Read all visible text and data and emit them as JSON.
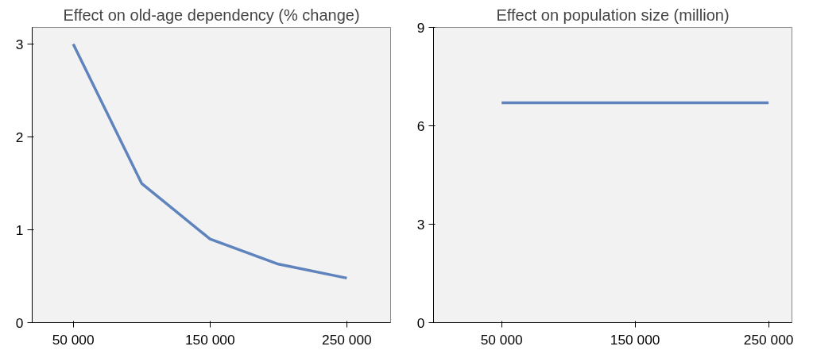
{
  "chart_data": [
    {
      "type": "line",
      "title": "Effect on old‑age dependency (% change)",
      "x": [
        50000,
        100000,
        150000,
        200000,
        250000
      ],
      "series": [
        {
          "color": "#5f84bd",
          "values": [
            3.0,
            1.5,
            0.9,
            0.63,
            0.48
          ]
        }
      ],
      "xlim": [
        20000,
        282000
      ],
      "ylim": [
        0,
        3.18
      ],
      "xticks": [
        {
          "value": 50000,
          "label": "50 000"
        },
        {
          "value": 150000,
          "label": "150 000"
        },
        {
          "value": 250000,
          "label": "250 000"
        }
      ],
      "yticks": [
        0,
        1,
        2,
        3
      ],
      "grid": false,
      "marker": "none",
      "line_style": "solid"
    },
    {
      "type": "line",
      "title": "Effect on population size (million)",
      "x": [
        50000,
        250000
      ],
      "series": [
        {
          "color": "#5f84bd",
          "values": [
            6.7,
            6.7
          ]
        }
      ],
      "xlim": [
        -1000,
        267500
      ],
      "ylim": [
        0,
        9
      ],
      "xticks": [
        {
          "value": 50000,
          "label": "50 000"
        },
        {
          "value": 150000,
          "label": "150 000"
        },
        {
          "value": 250000,
          "label": "250 000"
        }
      ],
      "yticks": [
        0,
        3,
        6,
        9
      ],
      "grid": false,
      "marker": "none",
      "line_style": "solid"
    }
  ]
}
